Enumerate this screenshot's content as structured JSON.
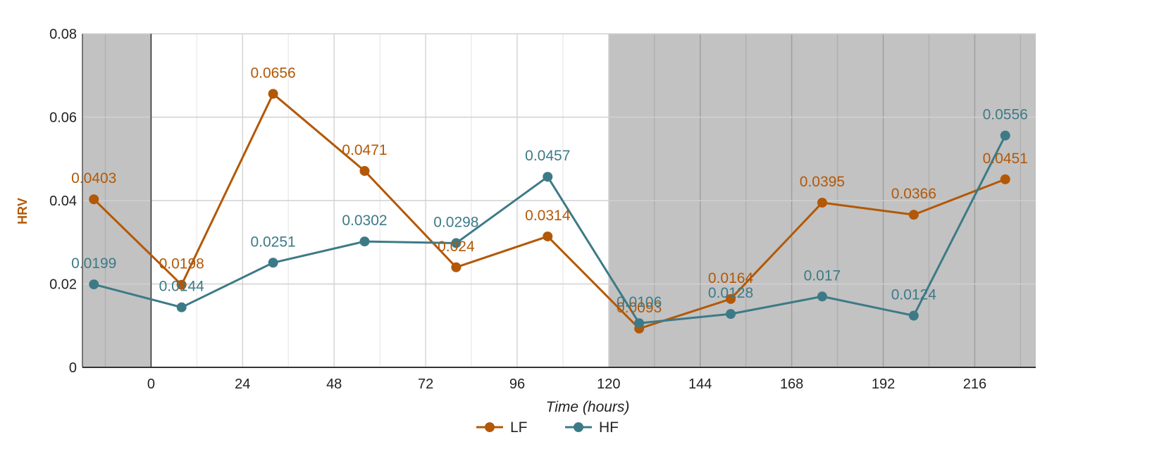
{
  "chart_data": {
    "type": "line",
    "xlabel": "Time (hours)",
    "ylabel": "HRV",
    "xlim": [
      -18,
      232
    ],
    "ylim": [
      0,
      0.08
    ],
    "x_ticks": [
      0,
      24,
      48,
      72,
      96,
      120,
      144,
      168,
      192,
      216
    ],
    "x_tick_labels": [
      "0",
      "24",
      "48",
      "72",
      "96",
      "120",
      "144",
      "168",
      "192",
      "216"
    ],
    "y_ticks": [
      0,
      0.02,
      0.04,
      0.06,
      0.08
    ],
    "y_tick_labels": [
      "0",
      "0.02",
      "0.04",
      "0.06",
      "0.08"
    ],
    "grid": true,
    "shaded_regions": [
      [
        -18,
        0
      ],
      [
        120,
        232
      ]
    ],
    "legend_position": "bottom",
    "series": [
      {
        "name": "LF",
        "color": "#b35806",
        "x": [
          -15,
          8,
          32,
          56,
          80,
          104,
          128,
          152,
          176,
          200,
          224
        ],
        "values": [
          0.0403,
          0.0198,
          0.0656,
          0.0471,
          0.024,
          0.0314,
          0.0093,
          0.0164,
          0.0395,
          0.0366,
          0.0451
        ],
        "labels": [
          "0.0403",
          "0.0198",
          "0.0656",
          "0.0471",
          "0.024",
          "0.0314",
          "0.0093",
          "0.0164",
          "0.0395",
          "0.0366",
          "0.0451"
        ]
      },
      {
        "name": "HF",
        "color": "#3d7a87",
        "x": [
          -15,
          8,
          32,
          56,
          80,
          104,
          128,
          152,
          176,
          200,
          224
        ],
        "values": [
          0.0199,
          0.0144,
          0.0251,
          0.0302,
          0.0298,
          0.0457,
          0.0106,
          0.0128,
          0.017,
          0.0124,
          0.0556
        ],
        "labels": [
          "0.0199",
          "0.0144",
          "0.0251",
          "0.0302",
          "0.0298",
          "0.0457",
          "0.0106",
          "0.0128",
          "0.017",
          "0.0124",
          "0.0556"
        ]
      }
    ]
  }
}
